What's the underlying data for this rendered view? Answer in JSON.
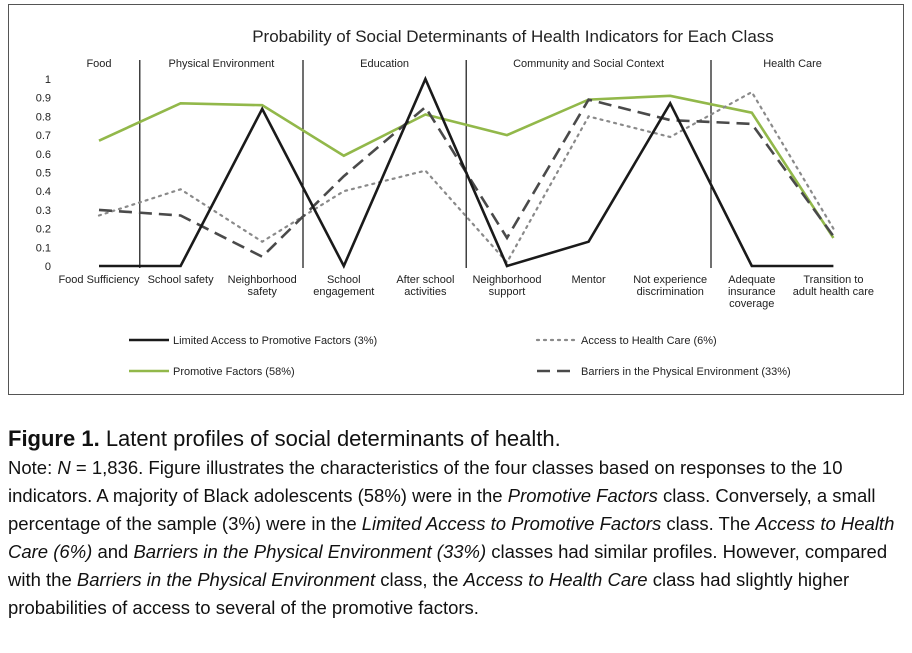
{
  "chart_data": {
    "type": "line",
    "title": "Probability of Social Determinants of Health Indicators for Each Class",
    "ylim": [
      0,
      1
    ],
    "yticks": [
      "0",
      "0.1",
      "0.2",
      "0.3",
      "0.4",
      "0.5",
      "0.6",
      "0.7",
      "0.8",
      "0.9",
      "1"
    ],
    "categories": [
      [
        "Food Sufficiency"
      ],
      [
        "School safety"
      ],
      [
        "Neighborhood",
        "safety"
      ],
      [
        "School",
        "engagement"
      ],
      [
        "After school",
        "activities"
      ],
      [
        "Neighborhood",
        "support"
      ],
      [
        "Mentor"
      ],
      [
        "Not experience",
        "discrimination"
      ],
      [
        "Adequate",
        "insurance",
        "coverage"
      ],
      [
        "Transition to",
        "adult health care"
      ]
    ],
    "groups": [
      {
        "label": "Food",
        "start": 0,
        "end": 0
      },
      {
        "label": "Physical Environment",
        "start": 1,
        "end": 2
      },
      {
        "label": "Education",
        "start": 3,
        "end": 4
      },
      {
        "label": "Community and Social Context",
        "start": 5,
        "end": 7
      },
      {
        "label": "Health Care",
        "start": 8,
        "end": 9
      }
    ],
    "series": [
      {
        "name": "Limited Access to Promotive Factors (3%)",
        "color": "#1a1a1a",
        "style": "solid",
        "values": [
          0,
          0,
          0.84,
          0,
          1.0,
          0,
          0.13,
          0.87,
          0,
          0
        ]
      },
      {
        "name": "Access to Health Care (6%)",
        "color": "#8a8a8a",
        "style": "dotted",
        "values": [
          0.27,
          0.41,
          0.13,
          0.4,
          0.51,
          0.02,
          0.8,
          0.69,
          0.93,
          0.2
        ]
      },
      {
        "name": "Promotive Factors (58%)",
        "color": "#92b84a",
        "style": "solid",
        "values": [
          0.67,
          0.87,
          0.86,
          0.59,
          0.81,
          0.7,
          0.89,
          0.91,
          0.82,
          0.15
        ]
      },
      {
        "name": "Barriers in the Physical Environment (33%)",
        "color": "#4a4a4a",
        "style": "dashed",
        "values": [
          0.3,
          0.27,
          0.05,
          0.48,
          0.85,
          0.15,
          0.89,
          0.78,
          0.76,
          0.16
        ]
      }
    ]
  },
  "caption": {
    "figure_label": "Figure 1.",
    "figure_title": "Latent profiles of social determinants of health.",
    "note_segments": [
      {
        "text": "Note: ",
        "italic": false
      },
      {
        "text": "N",
        "italic": true
      },
      {
        "text": " = 1,836. Figure illustrates the characteristics of the four classes based on responses to the 10 indicators. A majority of Black adolescents (58%) were in the ",
        "italic": false
      },
      {
        "text": "Promotive Factors",
        "italic": true
      },
      {
        "text": " class. Conversely, a small percentage of the sample (3%) were in the ",
        "italic": false
      },
      {
        "text": "Limited Access to Promotive Factors",
        "italic": true
      },
      {
        "text": " class. The ",
        "italic": false
      },
      {
        "text": "Access to Health Care (6%)",
        "italic": true
      },
      {
        "text": " and ",
        "italic": false
      },
      {
        "text": "Barriers in the Physical Environment (33%)",
        "italic": true
      },
      {
        "text": " classes had similar profiles. However, compared with the ",
        "italic": false
      },
      {
        "text": "Barriers in the Physical Environment",
        "italic": true
      },
      {
        "text": " class, the ",
        "italic": false
      },
      {
        "text": "Access to Health Care",
        "italic": true
      },
      {
        "text": " class had slightly higher probabilities of access to several of the promotive factors.",
        "italic": false
      }
    ]
  }
}
